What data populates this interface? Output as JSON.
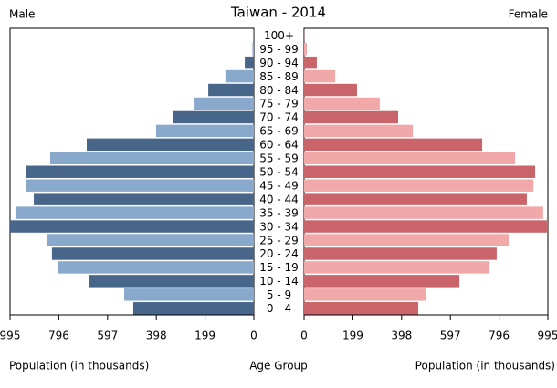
{
  "chart_data": {
    "type": "population-pyramid",
    "title": "Taiwan - 2014",
    "left_label": "Male",
    "right_label": "Female",
    "x_label": "Population (in thousands)",
    "center_label": "Age Group",
    "categories": [
      "100+",
      "95 - 99",
      "90 - 94",
      "85 - 89",
      "80 - 84",
      "75 - 79",
      "70 - 74",
      "65 - 69",
      "60 - 64",
      "55 - 59",
      "50 - 54",
      "45 - 49",
      "40 - 44",
      "35 - 39",
      "30 - 34",
      "25 - 29",
      "20 - 24",
      "15 - 19",
      "10 - 14",
      "5 - 9",
      "0 - 4"
    ],
    "series": [
      {
        "name": "Male",
        "colors": [
          "#88a8cc",
          "#48668a"
        ],
        "values": [
          1,
          6,
          37,
          116,
          186,
          242,
          328,
          399,
          682,
          831,
          928,
          928,
          898,
          973,
          995,
          846,
          824,
          798,
          671,
          529,
          492
        ]
      },
      {
        "name": "Female",
        "colors": [
          "#f0a8a8",
          "#c8646a"
        ],
        "values": [
          1,
          11,
          52,
          127,
          216,
          309,
          384,
          444,
          727,
          861,
          943,
          936,
          909,
          976,
          991,
          835,
          786,
          757,
          634,
          499,
          466
        ]
      }
    ],
    "xlim": [
      0,
      995
    ],
    "xticks": [
      0,
      199,
      398,
      597,
      796,
      995
    ]
  }
}
